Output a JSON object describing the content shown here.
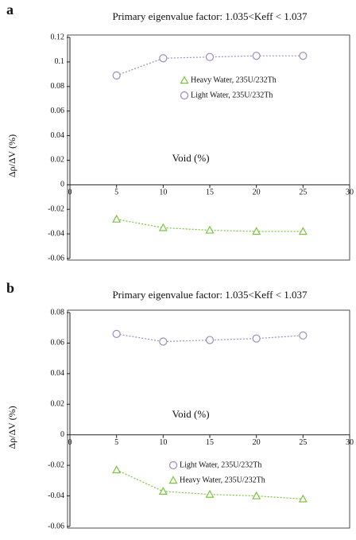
{
  "chart_data": [
    {
      "type": "line",
      "panel": "a",
      "title": "Primary eigenvalue factor: 1.035<Keff < 1.037",
      "y_label": "Δρ/ΔV (%)",
      "x_label": "Void  (%)",
      "x": [
        5,
        10,
        15,
        20,
        25
      ],
      "xlim": [
        0,
        30
      ],
      "xticks": [
        0,
        5,
        10,
        15,
        20,
        25,
        30
      ],
      "ylim": [
        -0.06,
        0.12
      ],
      "yticks": [
        -0.06,
        -0.04,
        -0.02,
        0,
        0.02,
        0.04,
        0.06,
        0.08,
        0.1,
        0.12
      ],
      "series": [
        {
          "name": "Heavy Water,  235U/232Th",
          "color": "#7cc242",
          "marker": "triangle",
          "values": [
            -0.028,
            -0.035,
            -0.037,
            -0.038,
            -0.038
          ]
        },
        {
          "name": "Light  Water,  235U/232Th",
          "color": "#9b8cbf",
          "marker": "circle",
          "values": [
            0.089,
            0.103,
            0.104,
            0.105,
            0.105
          ]
        }
      ]
    },
    {
      "type": "line",
      "panel": "b",
      "title": "Primary eigenvalue factor: 1.035<Keff < 1.037",
      "y_label": "Δρ/ΔV (%)",
      "x_label": "Void  (%)",
      "x": [
        5,
        10,
        15,
        20,
        25
      ],
      "xlim": [
        0,
        30
      ],
      "xticks": [
        0,
        5,
        10,
        15,
        20,
        25,
        30
      ],
      "ylim": [
        -0.06,
        0.08
      ],
      "yticks": [
        -0.06,
        -0.04,
        -0.02,
        0,
        0.02,
        0.04,
        0.06,
        0.08
      ],
      "series": [
        {
          "name": "Light  Water,  235U/232Th",
          "color": "#9b8cbf",
          "marker": "circle",
          "values": [
            0.066,
            0.061,
            0.062,
            0.063,
            0.065
          ]
        },
        {
          "name": "Heavy Water,  235U/232Th",
          "color": "#7cc242",
          "marker": "triangle",
          "values": [
            -0.023,
            -0.037,
            -0.039,
            -0.04,
            -0.042
          ]
        }
      ]
    }
  ]
}
